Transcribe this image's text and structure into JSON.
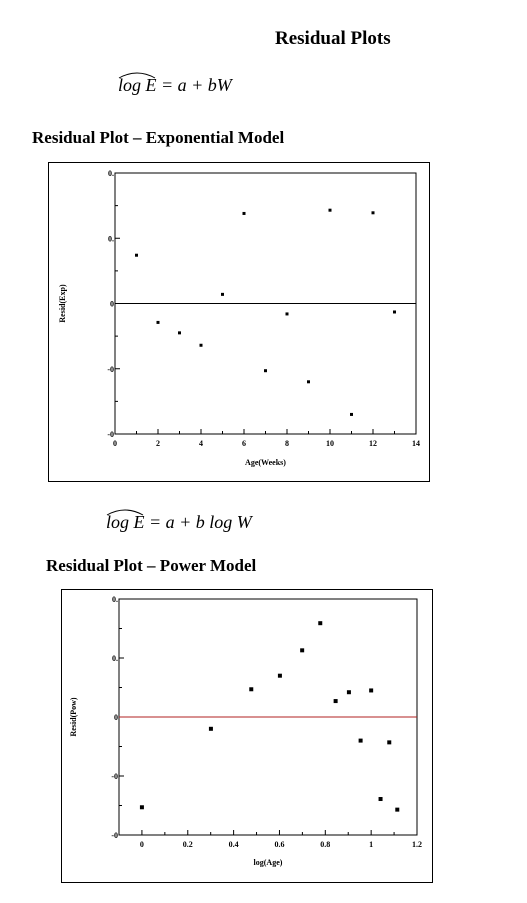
{
  "page": {
    "title": "Residual Plots"
  },
  "equations": {
    "exponential": {
      "lhs": "log E",
      "rhs": "= a + bW"
    },
    "power": {
      "lhs": "log E",
      "rhs": "= a + b log W"
    }
  },
  "sections": {
    "exponential_heading": "Residual Plot – Exponential Model",
    "power_heading": "Residual Plot – Power Model"
  },
  "chart_data": [
    {
      "type": "scatter",
      "title": "Residual Plot – Exponential Model",
      "xlabel": "Age(Weeks)",
      "ylabel": "Resid(Exp)",
      "xlim": [
        0,
        14
      ],
      "ylim": [
        -0.2,
        0.2
      ],
      "x_ticks": [
        0,
        2,
        4,
        6,
        8,
        10,
        12,
        14
      ],
      "x_tick_labels": [
        "0",
        "2",
        "4",
        "6",
        "8",
        "10",
        "12",
        "14"
      ],
      "y_ticks": [
        -0.2,
        -0.1,
        0,
        0.1,
        0.2
      ],
      "y_tick_labels": [
        "-0",
        "-0",
        "0",
        "0.",
        "0."
      ],
      "reference_line": {
        "y": 0,
        "color": "#000000"
      },
      "point_color": "#000000",
      "grid": false,
      "points": [
        {
          "x": 1,
          "y": 0.074
        },
        {
          "x": 2,
          "y": -0.029
        },
        {
          "x": 3,
          "y": -0.045
        },
        {
          "x": 4,
          "y": -0.064
        },
        {
          "x": 5,
          "y": 0.014
        },
        {
          "x": 6,
          "y": 0.138
        },
        {
          "x": 7,
          "y": -0.103
        },
        {
          "x": 8,
          "y": -0.016
        },
        {
          "x": 9,
          "y": -0.12
        },
        {
          "x": 10,
          "y": 0.143
        },
        {
          "x": 11,
          "y": -0.17
        },
        {
          "x": 12,
          "y": 0.139
        },
        {
          "x": 13,
          "y": -0.013
        }
      ]
    },
    {
      "type": "scatter",
      "title": "Residual Plot – Power Model",
      "xlabel": "log(Age)",
      "ylabel": "Resid(Pow)",
      "xlim": [
        -0.1,
        1.2
      ],
      "ylim": [
        -0.2,
        0.2
      ],
      "x_ticks": [
        0,
        0.2,
        0.4,
        0.6,
        0.8,
        1,
        1.2
      ],
      "x_tick_labels": [
        "0",
        "0.2",
        "0.4",
        "0.6",
        "0.8",
        "1",
        "1.2"
      ],
      "y_ticks": [
        -0.2,
        -0.1,
        0,
        0.1,
        0.2
      ],
      "y_tick_labels": [
        "-0",
        "-0",
        "0",
        "0.",
        "0."
      ],
      "reference_line": {
        "y": 0,
        "color": "#b22222"
      },
      "point_color": "#000000",
      "grid": false,
      "points": [
        {
          "x": 0.0,
          "y": -0.153
        },
        {
          "x": 0.301,
          "y": -0.02
        },
        {
          "x": 0.477,
          "y": 0.047
        },
        {
          "x": 0.602,
          "y": 0.07
        },
        {
          "x": 0.699,
          "y": 0.113
        },
        {
          "x": 0.778,
          "y": 0.159
        },
        {
          "x": 0.845,
          "y": 0.027
        },
        {
          "x": 0.903,
          "y": 0.042
        },
        {
          "x": 0.954,
          "y": -0.04
        },
        {
          "x": 1.0,
          "y": 0.045
        },
        {
          "x": 1.041,
          "y": -0.139
        },
        {
          "x": 1.079,
          "y": -0.043
        },
        {
          "x": 1.114,
          "y": -0.157
        }
      ]
    }
  ]
}
